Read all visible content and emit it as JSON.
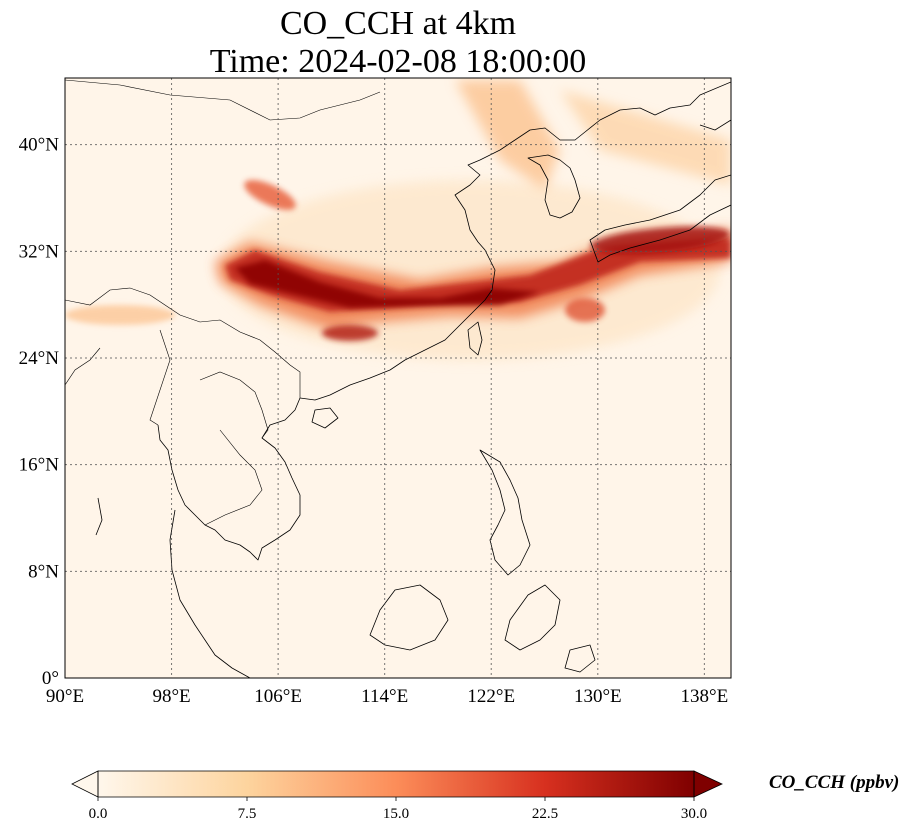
{
  "title": {
    "line1": "CO_CCH at 4km",
    "line2": "Time: 2024-02-08 18:00:00"
  },
  "map": {
    "lon_range": [
      90,
      140
    ],
    "lat_range": [
      0,
      45
    ],
    "lon_ticks": [
      {
        "value": 90,
        "label": "90°E"
      },
      {
        "value": 98,
        "label": "98°E"
      },
      {
        "value": 106,
        "label": "106°E"
      },
      {
        "value": 114,
        "label": "114°E"
      },
      {
        "value": 122,
        "label": "122°E"
      },
      {
        "value": 130,
        "label": "130°E"
      },
      {
        "value": 138,
        "label": "138°E"
      }
    ],
    "lat_ticks": [
      {
        "value": 0,
        "label": "0°"
      },
      {
        "value": 8,
        "label": "8°N"
      },
      {
        "value": 16,
        "label": "16°N"
      },
      {
        "value": 24,
        "label": "24°N"
      },
      {
        "value": 32,
        "label": "32°N"
      },
      {
        "value": 40,
        "label": "40°N"
      }
    ],
    "gridlines": "dotted",
    "background_color": "#fff5e9"
  },
  "colorbar": {
    "title": "CO_CCH (ppbv)",
    "colormap": "OrRd",
    "colors": [
      "#fff7ec",
      "#fdd49e",
      "#fc8d59",
      "#d7301f",
      "#7f0000"
    ],
    "min": 0,
    "max": 30,
    "extend": "both",
    "ticks": [
      {
        "value": 0,
        "label": "0.0"
      },
      {
        "value": 7.5,
        "label": "7.5"
      },
      {
        "value": 15,
        "label": "15.0"
      },
      {
        "value": 22.5,
        "label": "22.5"
      },
      {
        "value": 30,
        "label": "30.0"
      }
    ]
  }
}
